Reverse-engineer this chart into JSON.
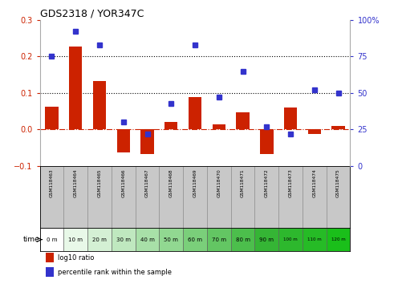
{
  "title": "GDS2318 / YOR347C",
  "samples": [
    "GSM118463",
    "GSM118464",
    "GSM118465",
    "GSM118466",
    "GSM118467",
    "GSM118468",
    "GSM118469",
    "GSM118470",
    "GSM118471",
    "GSM118472",
    "GSM118473",
    "GSM118474",
    "GSM118475"
  ],
  "time_labels": [
    "0 m",
    "10 m",
    "20 m",
    "30 m",
    "40 m",
    "50 m",
    "60 m",
    "70 m",
    "80 m",
    "90 m",
    "100 m",
    "110 m",
    "120 m"
  ],
  "log10_ratio": [
    0.063,
    0.228,
    0.132,
    -0.063,
    -0.068,
    0.02,
    0.088,
    0.013,
    0.047,
    -0.068,
    0.06,
    -0.013,
    0.01
  ],
  "percentile_rank": [
    75,
    92,
    83,
    30,
    22,
    43,
    83,
    47,
    65,
    27,
    22,
    52,
    50
  ],
  "left_ylim": [
    -0.1,
    0.3
  ],
  "right_ylim": [
    0,
    100
  ],
  "left_yticks": [
    -0.1,
    0.0,
    0.1,
    0.2,
    0.3
  ],
  "right_yticks": [
    0,
    25,
    50,
    75,
    100
  ],
  "right_yticklabels": [
    "0",
    "25",
    "50",
    "75",
    "100%"
  ],
  "bar_color": "#cc2200",
  "dot_color": "#3333cc",
  "hline_y0": 0.0,
  "dotted_lines": [
    0.1,
    0.2
  ],
  "bar_width": 0.55,
  "time_colors": [
    "#ffffff",
    "#e8f8e8",
    "#d4f0d4",
    "#bfe8bf",
    "#a8e0a8",
    "#91d891",
    "#7acf7a",
    "#63c663",
    "#4cbe4c",
    "#35b535",
    "#2db82d",
    "#26bb26",
    "#1abf1a"
  ],
  "label_bg": "#c8c8c8",
  "legend_items": [
    {
      "label": "log10 ratio",
      "color": "#cc2200"
    },
    {
      "label": "percentile rank within the sample",
      "color": "#3333cc"
    }
  ]
}
